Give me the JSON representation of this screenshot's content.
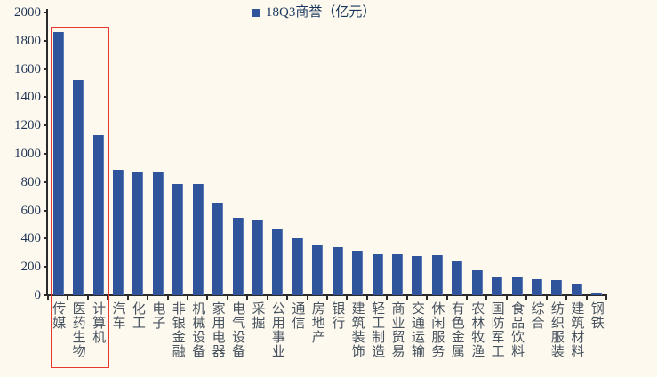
{
  "chart_data": {
    "type": "bar",
    "title": "",
    "legend": "18Q3商誉（亿元）",
    "legend_position": "top-center",
    "grid": false,
    "xlabel": "",
    "ylabel": "",
    "ylim": [
      0,
      2000
    ],
    "y_ticks": [
      0,
      200,
      400,
      600,
      800,
      1000,
      1200,
      1400,
      1600,
      1800,
      2000
    ],
    "categories": [
      "传媒",
      "医药生物",
      "计算机",
      "汽车",
      "化工",
      "电子",
      "非银金融",
      "机械设备",
      "家用电器",
      "电气设备",
      "采掘",
      "公用事业",
      "通信",
      "房地产",
      "银行",
      "建筑装饰",
      "轻工制造",
      "商业贸易",
      "交通运输",
      "休闲服务",
      "有色金属",
      "农林牧渔",
      "国防军工",
      "食品饮料",
      "综合",
      "纺织服装",
      "建筑材料",
      "钢铁"
    ],
    "values": [
      1860,
      1520,
      1130,
      885,
      875,
      870,
      785,
      787,
      655,
      545,
      535,
      470,
      400,
      350,
      340,
      313,
      288,
      290,
      278,
      280,
      240,
      175,
      135,
      130,
      112,
      110,
      80,
      20
    ],
    "bar_color": "#30549B",
    "background_color": "#FDF9EE",
    "highlight_box": {
      "categories": [
        "传媒",
        "医药生物",
        "计算机"
      ],
      "color": "#E8392F"
    }
  }
}
